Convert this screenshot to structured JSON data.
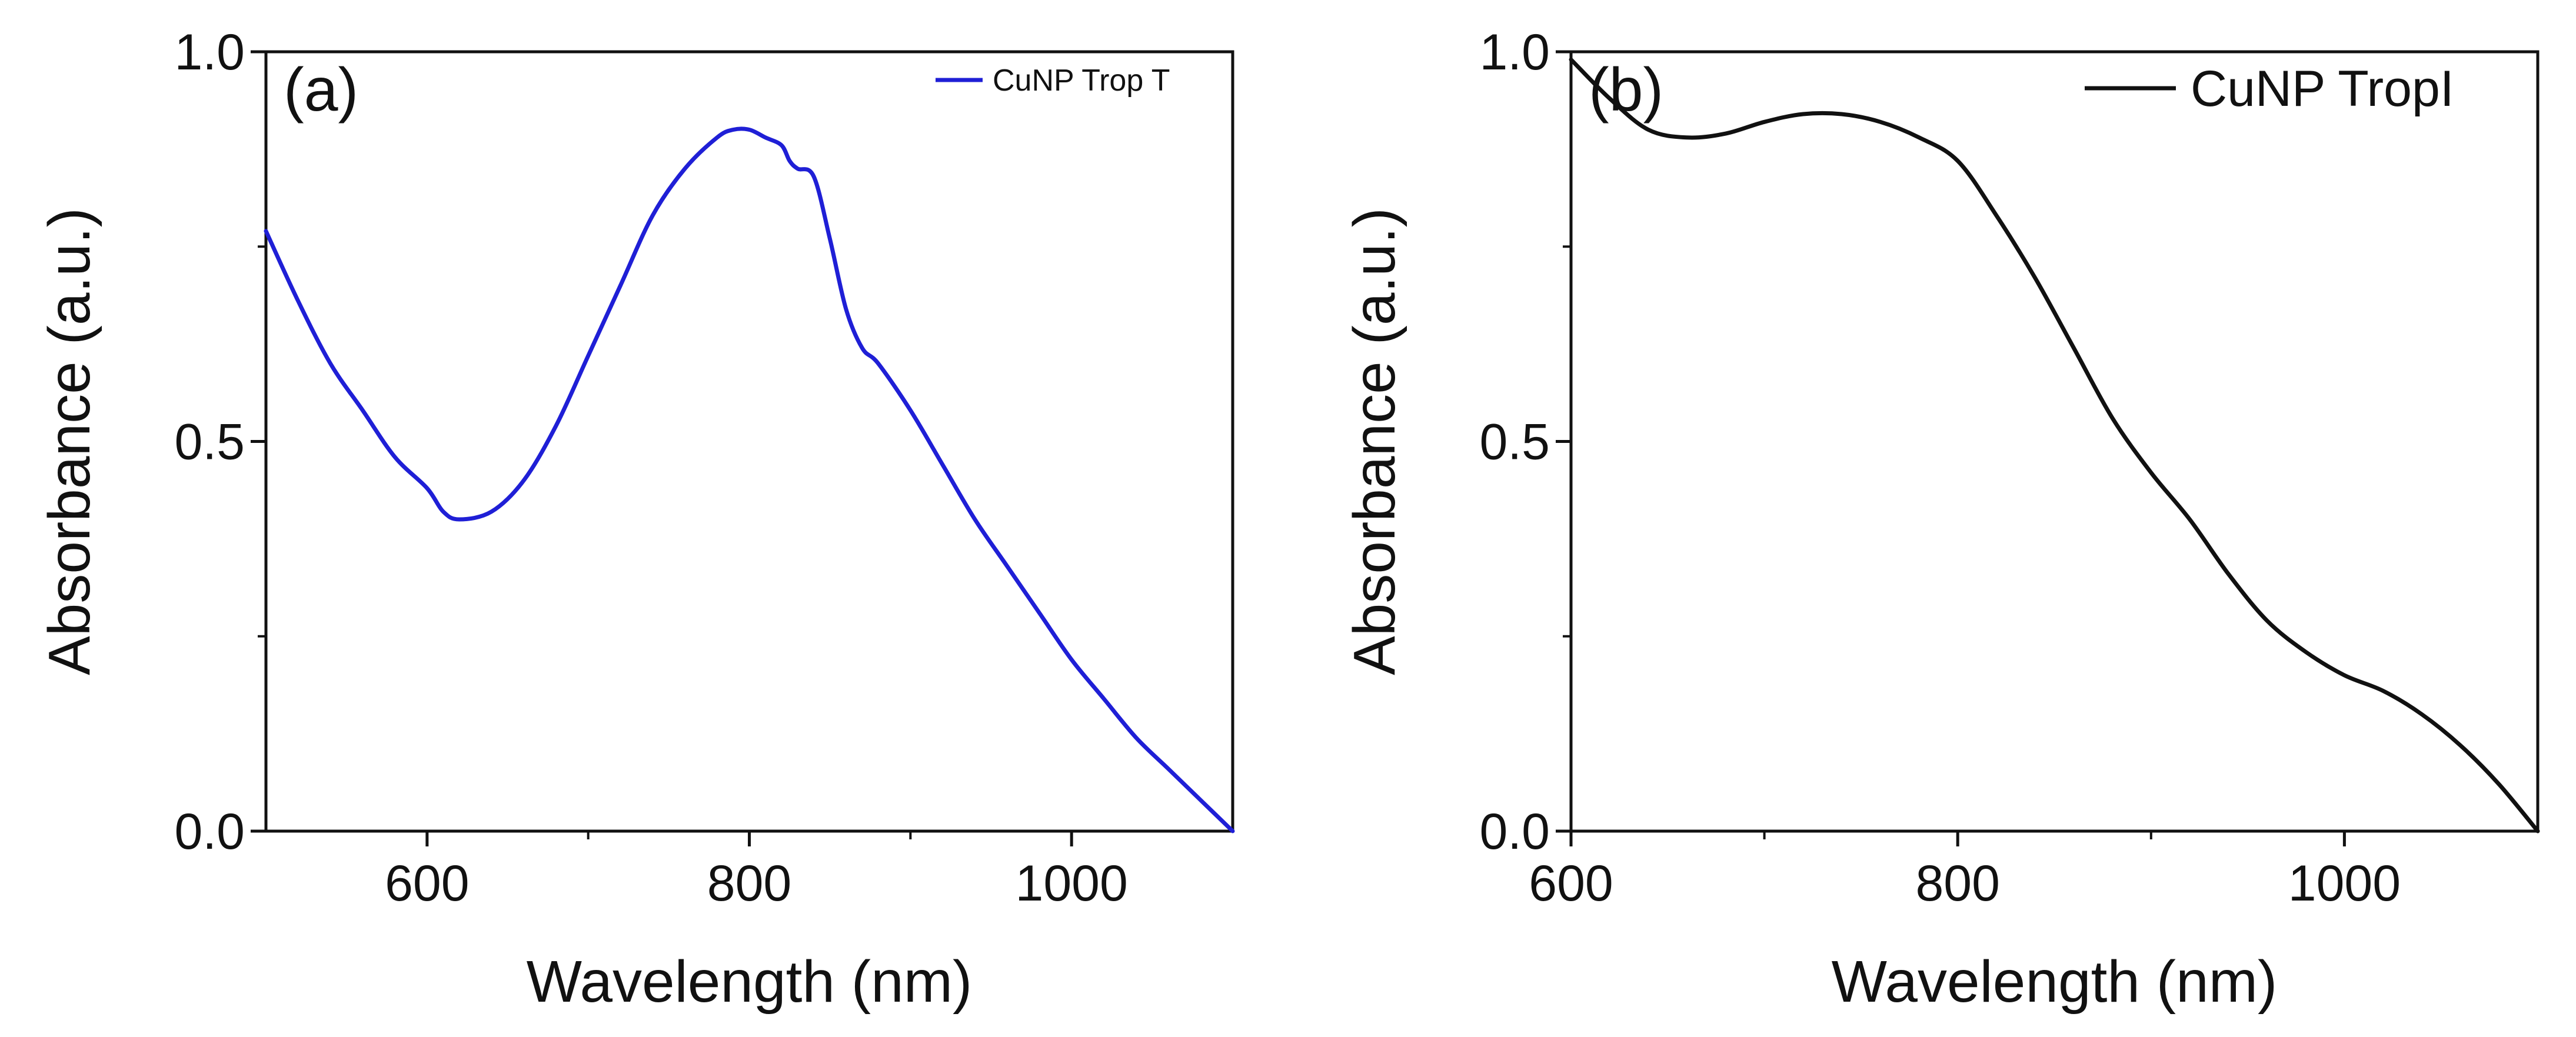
{
  "chart_data": [
    {
      "type": "line",
      "panel_label": "(a)",
      "title": "",
      "xlabel": "Wavelength (nm)",
      "ylabel": "Absorbance (a.u.)",
      "xlim": [
        500,
        1100
      ],
      "ylim": [
        0.0,
        1.0
      ],
      "xticks": [
        600,
        800,
        1000
      ],
      "yticks": [
        0.0,
        0.5,
        1.0
      ],
      "xtick_labels": [
        "600",
        "800",
        "1000"
      ],
      "ytick_labels": [
        "0.0",
        "0.5",
        "1.0"
      ],
      "legend_position": "top-right",
      "grid": false,
      "series": [
        {
          "name": "CuNP Trop T",
          "color": "#1f1fd6",
          "x": [
            500,
            520,
            540,
            560,
            580,
            600,
            610,
            620,
            640,
            660,
            680,
            700,
            720,
            740,
            760,
            780,
            790,
            800,
            810,
            820,
            825,
            830,
            840,
            850,
            860,
            870,
            880,
            900,
            920,
            940,
            960,
            980,
            1000,
            1020,
            1040,
            1060,
            1080,
            1100
          ],
          "y": [
            0.77,
            0.68,
            0.6,
            0.54,
            0.48,
            0.44,
            0.41,
            0.4,
            0.41,
            0.45,
            0.52,
            0.61,
            0.7,
            0.79,
            0.85,
            0.89,
            0.9,
            0.9,
            0.89,
            0.88,
            0.86,
            0.85,
            0.84,
            0.76,
            0.67,
            0.62,
            0.6,
            0.54,
            0.47,
            0.4,
            0.34,
            0.28,
            0.22,
            0.17,
            0.12,
            0.08,
            0.04,
            0.0
          ]
        }
      ]
    },
    {
      "type": "line",
      "panel_label": "(b)",
      "title": "",
      "xlabel": "Wavelength (nm)",
      "ylabel": "Absorbance (a.u.)",
      "xlim": [
        600,
        1100
      ],
      "ylim": [
        0.0,
        1.0
      ],
      "xticks": [
        600,
        800,
        1000
      ],
      "yticks": [
        0.0,
        0.5,
        1.0
      ],
      "xtick_labels": [
        "600",
        "800",
        "1000"
      ],
      "ytick_labels": [
        "0.0",
        "0.5",
        "1.0"
      ],
      "legend_position": "top-right",
      "grid": false,
      "series": [
        {
          "name": "CuNP TropI",
          "color": "#111111",
          "x": [
            600,
            620,
            640,
            660,
            680,
            700,
            720,
            740,
            760,
            780,
            800,
            820,
            840,
            860,
            880,
            900,
            920,
            940,
            960,
            980,
            1000,
            1020,
            1040,
            1060,
            1080,
            1100
          ],
          "y": [
            0.99,
            0.94,
            0.9,
            0.89,
            0.895,
            0.91,
            0.92,
            0.92,
            0.91,
            0.89,
            0.86,
            0.79,
            0.71,
            0.62,
            0.53,
            0.46,
            0.4,
            0.33,
            0.27,
            0.23,
            0.2,
            0.18,
            0.15,
            0.11,
            0.06,
            0.0
          ]
        }
      ]
    }
  ]
}
